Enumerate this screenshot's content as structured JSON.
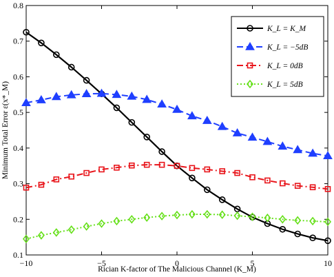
{
  "chart_data": {
    "type": "line",
    "xlabel": "Rician K-factor of The Malicious Channel (K_M)",
    "ylabel": "Minimum Total Error ε(x*_M)",
    "xlim": [
      -10,
      10
    ],
    "ylim": [
      0.1,
      0.8
    ],
    "xticks": [
      -10,
      -5,
      0,
      5,
      10
    ],
    "yticks": [
      0.1,
      0.2,
      0.3,
      0.4,
      0.5,
      0.6,
      0.7,
      0.8
    ],
    "xtick_labels": [
      "−10",
      "−5",
      "0",
      "5",
      "10"
    ],
    "ytick_labels": [
      "0.1",
      "0.2",
      "0.3",
      "0.4",
      "0.5",
      "0.6",
      "0.7",
      "0.8"
    ],
    "grid": false,
    "legend_position": "top-right",
    "x": [
      -10,
      -9,
      -8,
      -7,
      -6,
      -5,
      -4,
      -3,
      -2,
      -1,
      0,
      1,
      2,
      3,
      4,
      5,
      6,
      7,
      8,
      9,
      10
    ],
    "series": [
      {
        "name": "K_L = K_M",
        "color": "#000000",
        "line_style": "solid",
        "marker": "circle",
        "values": [
          0.725,
          0.695,
          0.662,
          0.627,
          0.59,
          0.552,
          0.513,
          0.472,
          0.431,
          0.39,
          0.35,
          0.316,
          0.283,
          0.255,
          0.229,
          0.206,
          0.188,
          0.172,
          0.159,
          0.148,
          0.14
        ]
      },
      {
        "name": "K_L = −5dB",
        "color": "#1f3fff",
        "line_style": "dashed",
        "marker": "triangle",
        "values": [
          0.527,
          0.535,
          0.544,
          0.549,
          0.552,
          0.553,
          0.55,
          0.545,
          0.536,
          0.523,
          0.508,
          0.49,
          0.477,
          0.46,
          0.442,
          0.43,
          0.418,
          0.405,
          0.395,
          0.385,
          0.378
        ]
      },
      {
        "name": "K_L = 0dB",
        "color": "#e8141a",
        "line_style": "dashdot",
        "marker": "square",
        "values": [
          0.289,
          0.297,
          0.312,
          0.32,
          0.33,
          0.34,
          0.345,
          0.351,
          0.353,
          0.353,
          0.35,
          0.344,
          0.34,
          0.335,
          0.33,
          0.318,
          0.309,
          0.301,
          0.294,
          0.29,
          0.285
        ]
      },
      {
        "name": "K_L = 5dB",
        "color": "#66e01a",
        "line_style": "dotted",
        "marker": "diamond",
        "values": [
          0.145,
          0.155,
          0.163,
          0.171,
          0.18,
          0.188,
          0.195,
          0.2,
          0.205,
          0.209,
          0.212,
          0.214,
          0.214,
          0.213,
          0.21,
          0.207,
          0.204,
          0.2,
          0.197,
          0.195,
          0.193
        ]
      }
    ]
  }
}
